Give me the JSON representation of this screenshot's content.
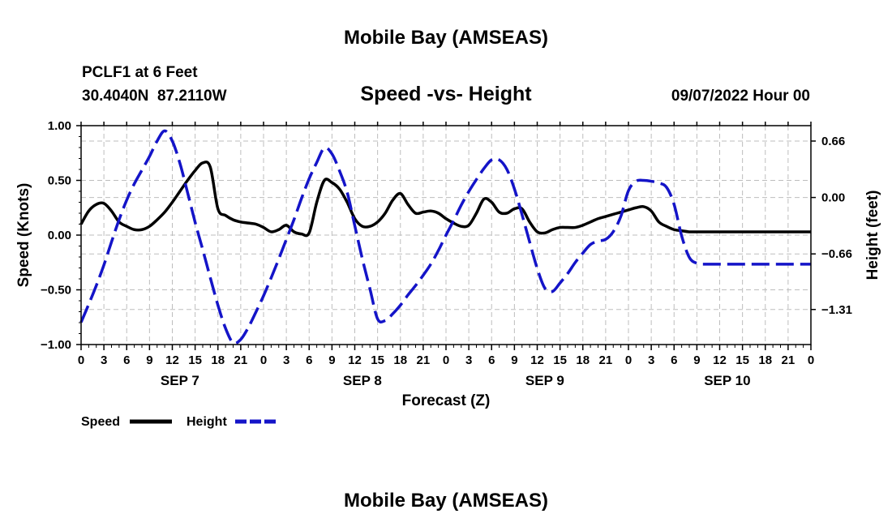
{
  "header": {
    "title": "Mobile Bay (AMSEAS)",
    "station_line": "PCLF1 at 6 Feet",
    "coords_line": "30.4040N  87.2110W",
    "chart_title": "Speed -vs- Height",
    "run_time": "09/07/2022 Hour 00"
  },
  "footer": {
    "title": "Mobile Bay (AMSEAS)"
  },
  "chart_data": {
    "type": "line",
    "title": "Speed -vs- Height",
    "xlabel": "Forecast (Z)",
    "ylabel": "Speed (Knots)",
    "y2label": "Height (feet)",
    "xlim": [
      0,
      96
    ],
    "ylim": [
      -1.0,
      1.0
    ],
    "y2lim": [
      -1.72,
      0.84
    ],
    "x_tick_step_hours": 3,
    "x_tick_labels": [
      "0",
      "3",
      "6",
      "9",
      "12",
      "15",
      "18",
      "21",
      "0",
      "3",
      "6",
      "9",
      "12",
      "15",
      "18",
      "21",
      "0",
      "3",
      "6",
      "9",
      "12",
      "15",
      "18",
      "21",
      "0",
      "3",
      "6",
      "9",
      "12",
      "15",
      "18",
      "21",
      "0"
    ],
    "day_labels": [
      "SEP 7",
      "SEP 8",
      "SEP 9",
      "SEP 10"
    ],
    "y_ticks": [
      -1.0,
      -0.5,
      0.0,
      0.5,
      1.0
    ],
    "y_tick_labels": [
      "−1.00",
      "−0.50",
      "0.00",
      "0.50",
      "1.00"
    ],
    "y2_ticks": [
      -1.31,
      -0.66,
      0.0,
      0.66
    ],
    "y2_tick_labels": [
      "−1.31",
      "−0.66",
      "0.00",
      "0.66"
    ],
    "grid": true,
    "legend_position": "bottom-left",
    "series": [
      {
        "name": "Speed",
        "axis": "left",
        "color": "#000000",
        "dash": "solid",
        "x": [
          0,
          1,
          2,
          3,
          4,
          5,
          6,
          7,
          8,
          9,
          10,
          11,
          12,
          13,
          14,
          15,
          16,
          17,
          18,
          19,
          20,
          21,
          22,
          23,
          24,
          25,
          26,
          27,
          28,
          29,
          30,
          31,
          32,
          33,
          34,
          35,
          36,
          37,
          38,
          39,
          40,
          41,
          42,
          43,
          44,
          45,
          46,
          47,
          48,
          49,
          50,
          51,
          52,
          53,
          54,
          55,
          56,
          57,
          58,
          59,
          60,
          61,
          62,
          63,
          64,
          65,
          66,
          67,
          68,
          69,
          70,
          71,
          72,
          73,
          74,
          75,
          76,
          77,
          78,
          79,
          80,
          81,
          82,
          83,
          84,
          85,
          86,
          87,
          88,
          89,
          90,
          91,
          92,
          93,
          94,
          95,
          96
        ],
        "values": [
          0.1,
          0.22,
          0.28,
          0.29,
          0.22,
          0.12,
          0.08,
          0.05,
          0.05,
          0.08,
          0.14,
          0.21,
          0.3,
          0.4,
          0.5,
          0.59,
          0.66,
          0.62,
          0.24,
          0.18,
          0.14,
          0.12,
          0.11,
          0.1,
          0.07,
          0.03,
          0.05,
          0.09,
          0.03,
          0.01,
          0.02,
          0.3,
          0.5,
          0.48,
          0.42,
          0.3,
          0.15,
          0.08,
          0.08,
          0.12,
          0.2,
          0.32,
          0.38,
          0.28,
          0.2,
          0.21,
          0.22,
          0.2,
          0.15,
          0.11,
          0.08,
          0.09,
          0.2,
          0.33,
          0.3,
          0.21,
          0.2,
          0.24,
          0.24,
          0.12,
          0.03,
          0.02,
          0.05,
          0.07,
          0.07,
          0.07,
          0.09,
          0.12,
          0.15,
          0.17,
          0.19,
          0.21,
          0.23,
          0.25,
          0.26,
          0.22,
          0.12,
          0.08,
          0.05,
          0.04,
          0.03,
          0.03,
          0.03,
          0.03,
          0.03,
          0.03,
          0.03,
          0.03,
          0.03,
          0.03,
          0.03,
          0.03,
          0.03,
          0.03,
          0.03,
          0.03,
          0.03
        ]
      },
      {
        "name": "Height",
        "axis": "right",
        "color": "#1414c8",
        "dash": "dashed",
        "x": [
          0,
          1,
          2,
          3,
          4,
          5,
          6,
          7,
          8,
          9,
          10,
          11,
          12,
          13,
          14,
          15,
          16,
          17,
          18,
          19,
          20,
          21,
          22,
          23,
          24,
          25,
          26,
          27,
          28,
          29,
          30,
          31,
          32,
          33,
          34,
          35,
          36,
          37,
          38,
          39,
          40,
          41,
          42,
          43,
          44,
          45,
          46,
          47,
          48,
          49,
          50,
          51,
          52,
          53,
          54,
          55,
          56,
          57,
          58,
          59,
          60,
          61,
          62,
          63,
          64,
          65,
          66,
          67,
          68,
          69,
          70,
          71,
          72,
          73,
          74,
          75,
          76,
          77,
          78,
          79,
          80,
          81,
          82,
          83,
          84,
          85,
          86,
          87,
          88,
          89,
          90,
          91,
          92,
          93,
          94,
          95,
          96
        ],
        "values": [
          -1.46,
          -1.25,
          -1.03,
          -0.79,
          -0.52,
          -0.26,
          -0.03,
          0.16,
          0.32,
          0.48,
          0.66,
          0.78,
          0.66,
          0.4,
          0.06,
          -0.29,
          -0.61,
          -0.94,
          -1.26,
          -1.53,
          -1.7,
          -1.66,
          -1.52,
          -1.34,
          -1.15,
          -0.94,
          -0.72,
          -0.49,
          -0.26,
          -0.01,
          0.22,
          0.41,
          0.58,
          0.51,
          0.31,
          0.06,
          -0.33,
          -0.72,
          -1.07,
          -1.42,
          -1.44,
          -1.36,
          -1.26,
          -1.14,
          -1.03,
          -0.91,
          -0.78,
          -0.62,
          -0.44,
          -0.27,
          -0.09,
          0.07,
          0.21,
          0.34,
          0.44,
          0.44,
          0.33,
          0.1,
          -0.2,
          -0.52,
          -0.83,
          -1.06,
          -1.1,
          -1.0,
          -0.89,
          -0.76,
          -0.65,
          -0.55,
          -0.51,
          -0.49,
          -0.4,
          -0.22,
          0.08,
          0.19,
          0.2,
          0.19,
          0.17,
          0.12,
          -0.08,
          -0.45,
          -0.7,
          -0.77,
          -0.78,
          -0.78,
          -0.78,
          -0.78,
          -0.78,
          -0.78,
          -0.78,
          -0.78,
          -0.78,
          -0.78,
          -0.78,
          -0.78,
          -0.78,
          -0.78,
          -0.78
        ]
      }
    ],
    "legend": [
      {
        "label": "Speed",
        "color": "#000000",
        "dash": "solid"
      },
      {
        "label": "Height",
        "color": "#1414c8",
        "dash": "dashed"
      }
    ]
  }
}
